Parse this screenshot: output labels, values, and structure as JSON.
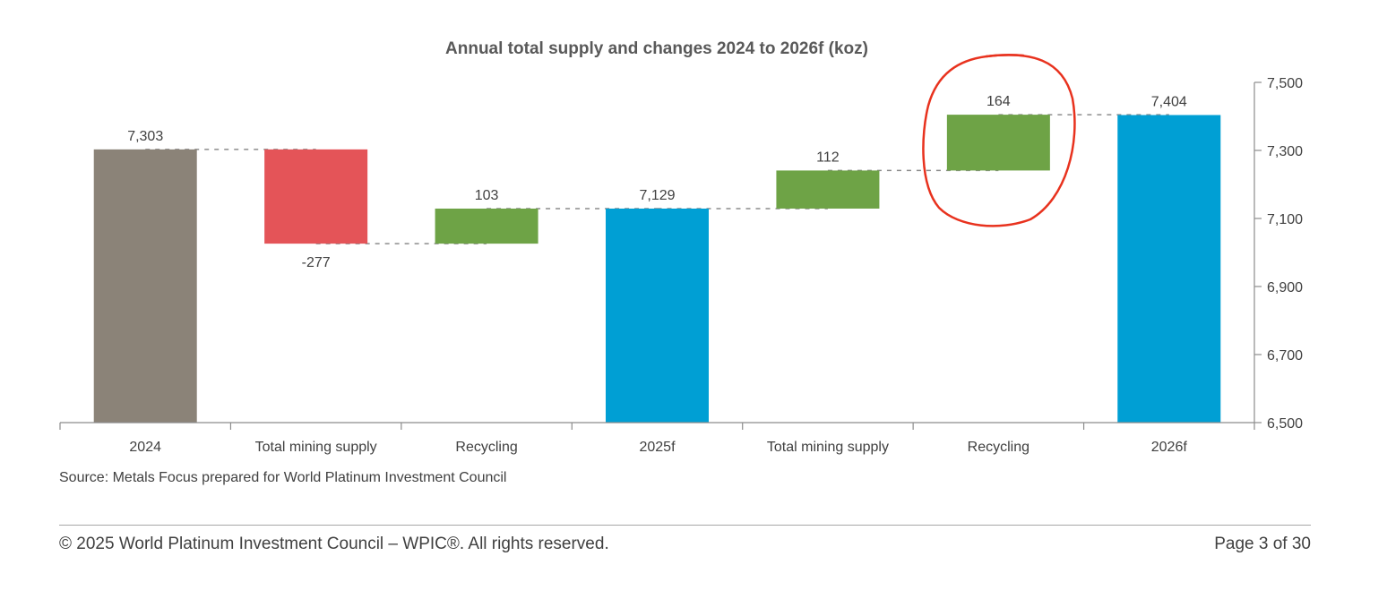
{
  "chart_data": {
    "type": "waterfall",
    "title": "Annual total supply and changes 2024 to 2026f (koz)",
    "categories": [
      "2024",
      "Total mining supply",
      "Recycling",
      "2025f",
      "Total mining supply",
      "Recycling",
      "2026f"
    ],
    "steps": [
      {
        "category": "2024",
        "kind": "total",
        "value": 7303,
        "label": "7,303",
        "color": "#8b8378"
      },
      {
        "category": "Total mining supply",
        "kind": "delta",
        "value": -277,
        "label": "-277",
        "color": "#e45458"
      },
      {
        "category": "Recycling",
        "kind": "delta",
        "value": 103,
        "label": "103",
        "color": "#6ea346"
      },
      {
        "category": "2025f",
        "kind": "total",
        "value": 7129,
        "label": "7,129",
        "color": "#009fd4"
      },
      {
        "category": "Total mining supply",
        "kind": "delta",
        "value": 112,
        "label": "112",
        "color": "#6ea346"
      },
      {
        "category": "Recycling",
        "kind": "delta",
        "value": 164,
        "label": "164",
        "color": "#6ea346"
      },
      {
        "category": "2026f",
        "kind": "total",
        "value": 7404,
        "label": "7,404",
        "color": "#009fd4"
      }
    ],
    "ylim": [
      6500,
      7500
    ],
    "yticks": [
      6500,
      6700,
      6900,
      7100,
      7300,
      7500
    ],
    "ytick_labels": [
      "6,500",
      "6,700",
      "6,900",
      "7,100",
      "7,300",
      "7,500"
    ],
    "y_axis_side": "right",
    "connector_lines": "dashed",
    "annotation": {
      "type": "hand-drawn circle",
      "target_step": 5,
      "color": "#e8321e"
    }
  },
  "source": "Source: Metals Focus prepared for World Platinum Investment Council",
  "footer": {
    "copyright": "© 2025 World Platinum Investment Council – WPIC®. All rights reserved.",
    "page": "Page 3 of 30"
  }
}
